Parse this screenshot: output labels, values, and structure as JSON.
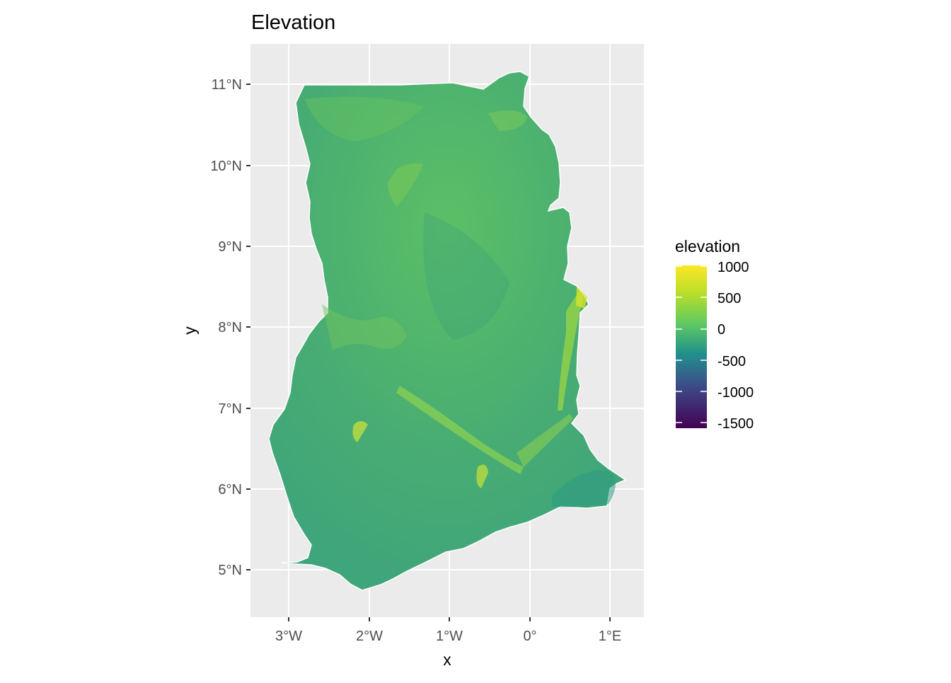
{
  "title": "Elevation",
  "x_axis": {
    "title": "x",
    "ticks": [
      {
        "value": -3,
        "label": "3°W"
      },
      {
        "value": -2,
        "label": "2°W"
      },
      {
        "value": -1,
        "label": "1°W"
      },
      {
        "value": 0,
        "label": "0°"
      },
      {
        "value": 1,
        "label": "1°E"
      }
    ]
  },
  "y_axis": {
    "title": "y",
    "ticks": [
      {
        "value": 5,
        "label": "5°N"
      },
      {
        "value": 6,
        "label": "6°N"
      },
      {
        "value": 7,
        "label": "7°N"
      },
      {
        "value": 8,
        "label": "8°N"
      },
      {
        "value": 9,
        "label": "9°N"
      },
      {
        "value": 10,
        "label": "10°N"
      },
      {
        "value": 11,
        "label": "11°N"
      }
    ]
  },
  "legend": {
    "title": "elevation",
    "labels": [
      "1000",
      "500",
      "0",
      "-500",
      "-1000",
      "-1500"
    ],
    "colors": [
      "#fde725",
      "#5ec962",
      "#21918c",
      "#3b528b",
      "#440154"
    ]
  },
  "colors": {
    "panel_background": "#ebebeb",
    "grid": "#ffffff",
    "land_fill": "#4fb46d"
  },
  "chart_data": {
    "type": "heatmap",
    "title": "Elevation",
    "xlabel": "x",
    "ylabel": "y",
    "xlim": [
      -3.5,
      1.4
    ],
    "ylim": [
      4.5,
      11.5
    ],
    "fill_variable": "elevation",
    "fill_range": [
      -1500,
      1000
    ],
    "colorscale": "viridis",
    "region": "Ghana",
    "legend_position": "right"
  }
}
